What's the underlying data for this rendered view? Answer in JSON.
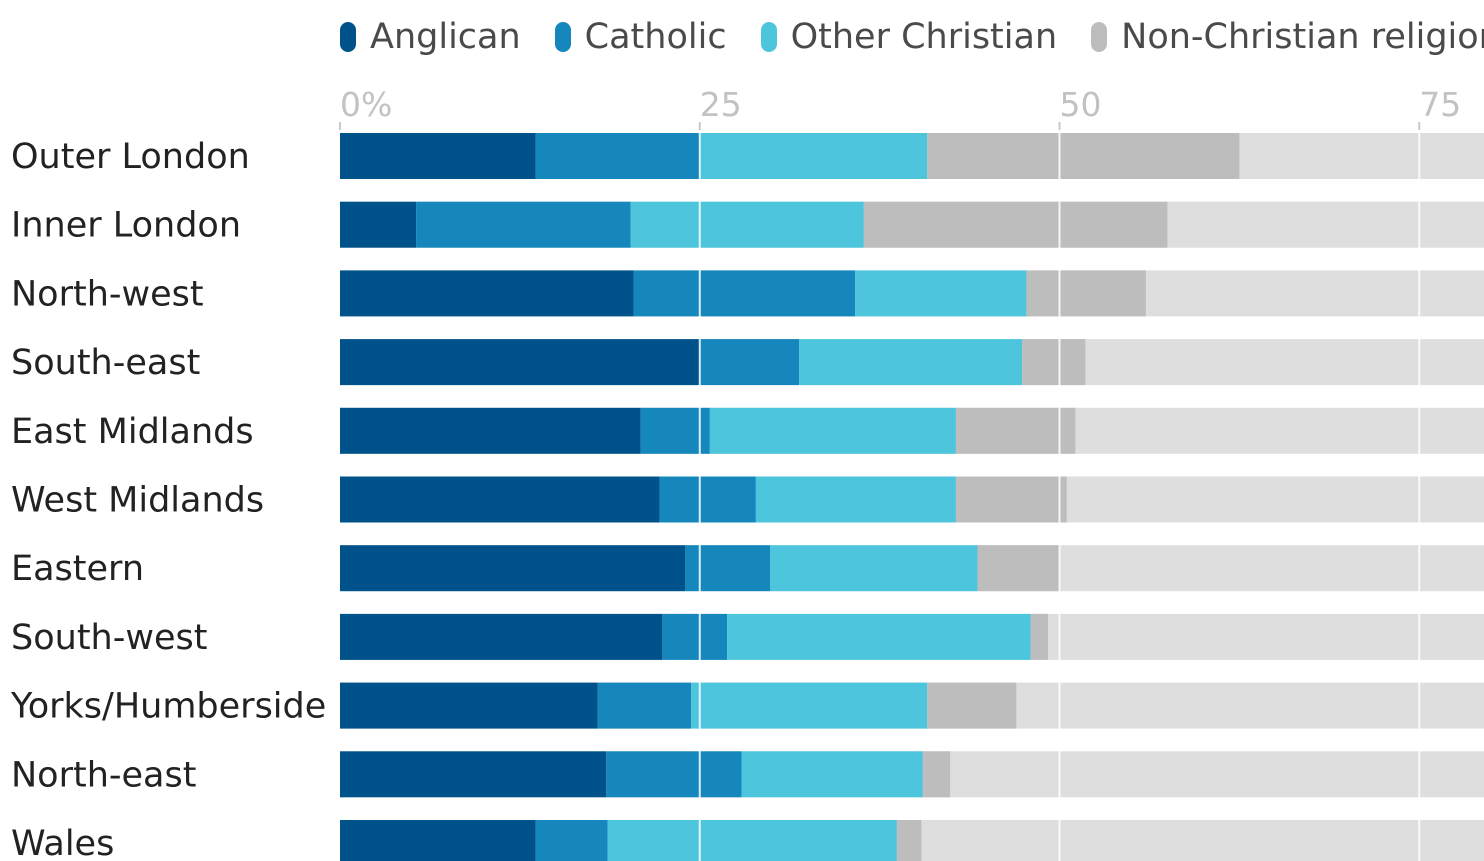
{
  "chart_data": {
    "type": "bar",
    "orientation": "horizontal",
    "stacked": true,
    "categories": [
      "Outer London",
      "Inner London",
      "North-west",
      "South-east",
      "East Midlands",
      "West Midlands",
      "Eastern",
      "South-west",
      "Yorks/Humberside",
      "North-east",
      "Wales"
    ],
    "series": [
      {
        "name": "Anglican",
        "color": "#00538a",
        "values": [
          13.6,
          5.3,
          20.4,
          25.0,
          20.9,
          22.2,
          24.0,
          22.4,
          17.9,
          18.5,
          13.6
        ]
      },
      {
        "name": "Catholic",
        "color": "#1587bd",
        "values": [
          11.4,
          14.9,
          15.4,
          6.9,
          4.8,
          6.7,
          5.9,
          4.5,
          6.5,
          9.4,
          5.0
        ]
      },
      {
        "name": "Other Christian",
        "color": "#4dc6dd",
        "values": [
          15.8,
          16.2,
          11.9,
          15.5,
          17.1,
          13.9,
          14.4,
          21.1,
          16.4,
          12.6,
          20.1
        ]
      },
      {
        "name": "Non-Christian religion",
        "color": "#bdbdbd",
        "values": [
          21.7,
          21.1,
          8.3,
          4.4,
          8.3,
          7.7,
          5.7,
          1.2,
          6.2,
          1.9,
          1.7
        ]
      }
    ],
    "remainder_color": "#dedede",
    "xlim": [
      0,
      79.5
    ],
    "xticks": [
      0,
      25,
      50,
      75
    ],
    "xtick_labels": [
      "0%",
      "25",
      "50",
      "75"
    ],
    "legend_position": "top",
    "grid": true,
    "title": "",
    "xlabel": "",
    "ylabel": ""
  }
}
